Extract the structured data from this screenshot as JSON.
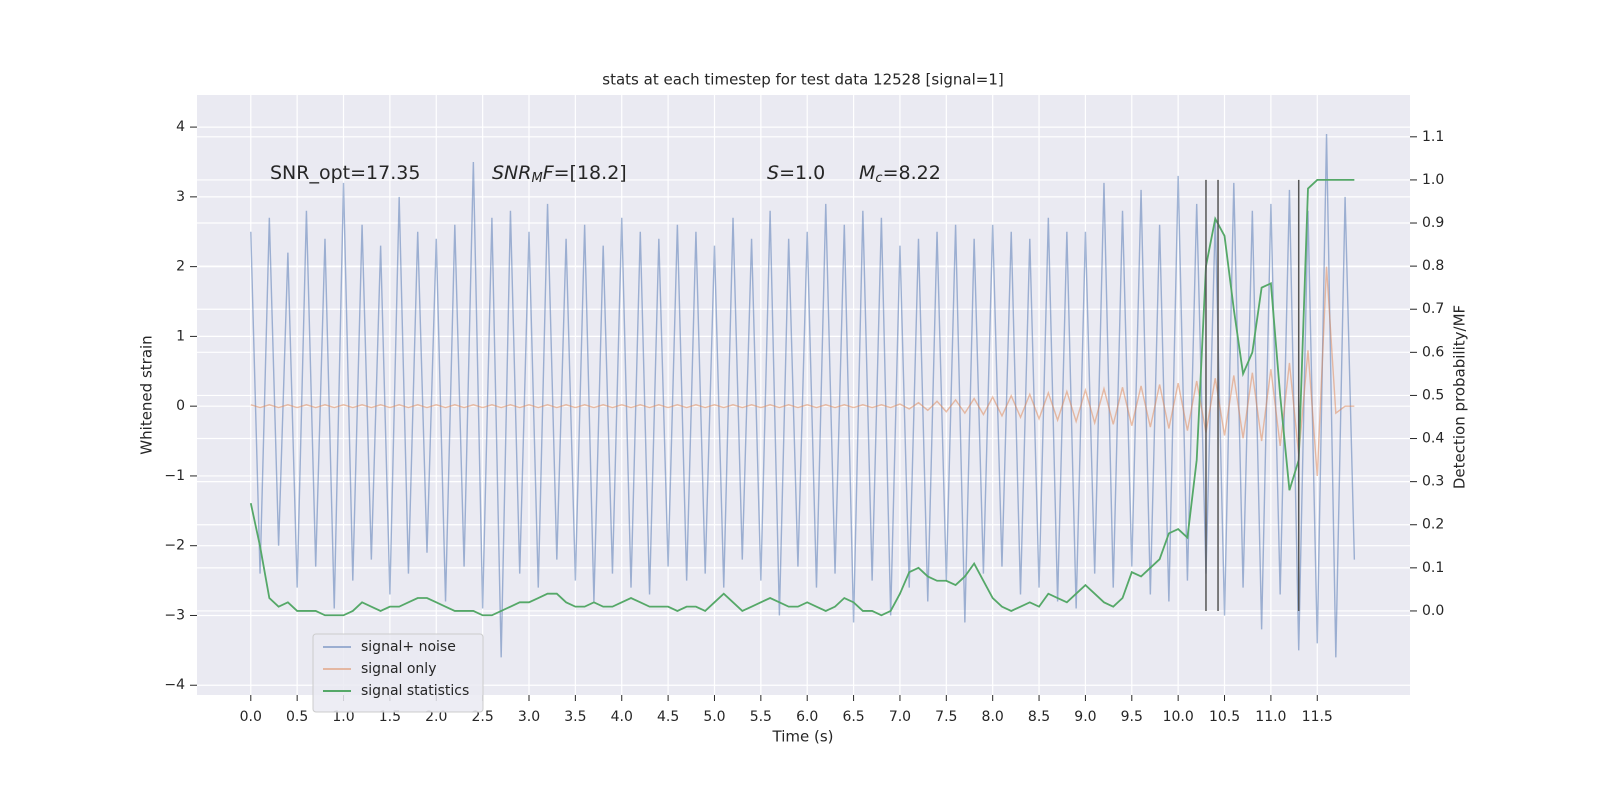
{
  "chart_data": {
    "type": "line",
    "title": "stats at each timestep for test data 12528 [signal=1]",
    "xlabel": "Time (s)",
    "ylabel": "Whitened strain",
    "y2label": "Detection probability/MF",
    "grid": true,
    "legend": "lower left",
    "xlim": [
      -0.58,
      12.5
    ],
    "ylim": [
      -4.14,
      4.46
    ],
    "y2lim": [
      -0.195,
      1.197
    ],
    "xticks": [
      {
        "value": 0,
        "label": "0.0"
      },
      {
        "value": 0.5,
        "label": "0.5"
      },
      {
        "value": 1,
        "label": "1.0"
      },
      {
        "value": 1.5,
        "label": "1.5"
      },
      {
        "value": 2,
        "label": "2.0"
      },
      {
        "value": 2.5,
        "label": "2.5"
      },
      {
        "value": 3,
        "label": "3.0"
      },
      {
        "value": 3.5,
        "label": "3.5"
      },
      {
        "value": 4,
        "label": "4.0"
      },
      {
        "value": 4.5,
        "label": "4.5"
      },
      {
        "value": 5,
        "label": "5.0"
      },
      {
        "value": 5.5,
        "label": "5.5"
      },
      {
        "value": 6,
        "label": "6.0"
      },
      {
        "value": 6.5,
        "label": "6.5"
      },
      {
        "value": 7,
        "label": "7.0"
      },
      {
        "value": 7.5,
        "label": "7.5"
      },
      {
        "value": 8,
        "label": "8.0"
      },
      {
        "value": 8.5,
        "label": "8.5"
      },
      {
        "value": 9,
        "label": "9.0"
      },
      {
        "value": 9.5,
        "label": "9.5"
      },
      {
        "value": 10,
        "label": "10.0"
      },
      {
        "value": 10.5,
        "label": "10.5"
      },
      {
        "value": 11,
        "label": "11.0"
      },
      {
        "value": 11.5,
        "label": "11.5"
      }
    ],
    "yticks": [
      {
        "value": -4,
        "label": "−4"
      },
      {
        "value": -3,
        "label": "−3"
      },
      {
        "value": -2,
        "label": "−2"
      },
      {
        "value": -1,
        "label": "−1"
      },
      0,
      1,
      2,
      3,
      4
    ],
    "y2ticks": [
      {
        "value": 0,
        "label": "0.0"
      },
      {
        "value": 0.1,
        "label": "0.1"
      },
      {
        "value": 0.2,
        "label": "0.2"
      },
      {
        "value": 0.3,
        "label": "0.3"
      },
      {
        "value": 0.4,
        "label": "0.4"
      },
      {
        "value": 0.5,
        "label": "0.5"
      },
      {
        "value": 0.6,
        "label": "0.6"
      },
      {
        "value": 0.7,
        "label": "0.7"
      },
      {
        "value": 0.8,
        "label": "0.8"
      },
      {
        "value": 0.9,
        "label": "0.9"
      },
      {
        "value": 1,
        "label": "1.0"
      },
      {
        "value": 1.1,
        "label": "1.1"
      }
    ],
    "annotations": [
      [
        {
          "text": "SNR_opt=17.35"
        }
      ],
      [
        {
          "text": "SNR",
          "italic": true
        },
        {
          "text": "M",
          "italic": true,
          "sub": true
        },
        {
          "text": "F",
          "italic": true
        },
        {
          "text": "=[18.2]"
        }
      ],
      [
        {
          "text": "S",
          "italic": true
        },
        {
          "text": "=1.0"
        }
      ],
      [
        {
          "text": "M",
          "italic": true
        },
        {
          "text": "c",
          "italic": true,
          "sub": true
        },
        {
          "text": "=8.22"
        }
      ]
    ],
    "vlines": {
      "x": [
        10.3,
        10.43,
        11.3
      ],
      "y2": [
        0.0,
        1.0
      ],
      "color": "#555555"
    },
    "x": [
      0,
      0.1,
      0.2,
      0.3,
      0.4,
      0.5,
      0.6,
      0.7,
      0.8,
      0.9,
      1,
      1.1,
      1.2,
      1.3,
      1.4,
      1.5,
      1.6,
      1.7,
      1.8,
      1.9,
      2,
      2.1,
      2.2,
      2.3,
      2.4,
      2.5,
      2.6,
      2.7,
      2.8,
      2.9,
      3,
      3.1,
      3.2,
      3.3,
      3.4,
      3.5,
      3.6,
      3.7,
      3.8,
      3.9,
      4,
      4.1,
      4.2,
      4.3,
      4.4,
      4.5,
      4.6,
      4.7,
      4.8,
      4.9,
      5,
      5.1,
      5.2,
      5.3,
      5.4,
      5.5,
      5.6,
      5.7,
      5.8,
      5.9,
      6,
      6.1,
      6.2,
      6.3,
      6.4,
      6.5,
      6.6,
      6.7,
      6.8,
      6.9,
      7,
      7.1,
      7.2,
      7.3,
      7.4,
      7.5,
      7.6,
      7.7,
      7.8,
      7.9,
      8,
      8.1,
      8.2,
      8.3,
      8.4,
      8.5,
      8.6,
      8.7,
      8.8,
      8.9,
      9,
      9.1,
      9.2,
      9.3,
      9.4,
      9.5,
      9.6,
      9.7,
      9.8,
      9.9,
      10,
      10.1,
      10.2,
      10.3,
      10.4,
      10.5,
      10.6,
      10.7,
      10.8,
      10.9,
      11,
      11.1,
      11.2,
      11.3,
      11.4,
      11.5,
      11.6,
      11.7,
      11.8,
      11.9
    ],
    "series": [
      {
        "name": "signal+ noise",
        "color": "#4c72b0",
        "opacity": 0.5,
        "values": [
          2.5,
          -2.4,
          2.7,
          -2.0,
          2.2,
          -2.6,
          2.8,
          -2.3,
          2.4,
          -2.9,
          3.2,
          -2.5,
          2.6,
          -2.2,
          2.3,
          -2.7,
          3.0,
          -2.4,
          2.5,
          -2.1,
          2.4,
          -2.8,
          2.6,
          -2.3,
          3.5,
          -2.9,
          2.7,
          -3.6,
          2.8,
          -2.4,
          2.5,
          -2.6,
          2.9,
          -2.2,
          2.4,
          -2.5,
          2.6,
          -2.8,
          2.3,
          -2.4,
          2.7,
          -2.6,
          2.5,
          -2.7,
          2.4,
          -2.3,
          2.6,
          -2.5,
          2.5,
          -2.4,
          2.3,
          -2.6,
          2.7,
          -2.2,
          2.4,
          -2.5,
          2.8,
          -3.0,
          2.4,
          -2.3,
          2.5,
          -2.6,
          2.9,
          -2.4,
          2.6,
          -3.1,
          2.8,
          -2.5,
          2.7,
          -3.0,
          2.3,
          -2.6,
          2.4,
          -2.8,
          2.5,
          -2.5,
          2.6,
          -3.1,
          2.4,
          -2.4,
          2.6,
          -2.3,
          2.5,
          -2.7,
          2.4,
          -2.6,
          2.7,
          -2.8,
          2.5,
          -2.9,
          2.5,
          -2.4,
          3.2,
          -2.6,
          2.8,
          -2.3,
          3.1,
          -2.7,
          2.6,
          -2.8,
          3.3,
          -2.5,
          2.9,
          -2.4,
          2.7,
          -3.0,
          3.2,
          -2.6,
          2.8,
          -3.2,
          2.9,
          -2.7,
          3.1,
          -3.5,
          2.8,
          -3.4,
          3.9,
          -3.6,
          3.0,
          -2.2
        ]
      },
      {
        "name": "signal only",
        "color": "#dd8452",
        "opacity": 0.5,
        "values": [
          0.02,
          -0.02,
          0.02,
          -0.02,
          0.02,
          -0.02,
          0.02,
          -0.02,
          0.02,
          -0.02,
          0.02,
          -0.02,
          0.02,
          -0.02,
          0.02,
          -0.02,
          0.02,
          -0.02,
          0.02,
          -0.02,
          0.02,
          -0.02,
          0.02,
          -0.02,
          0.02,
          -0.02,
          0.02,
          -0.02,
          0.02,
          -0.02,
          0.02,
          -0.02,
          0.02,
          -0.02,
          0.02,
          -0.02,
          0.02,
          -0.02,
          0.02,
          -0.02,
          0.02,
          -0.02,
          0.02,
          -0.02,
          0.02,
          -0.02,
          0.02,
          -0.02,
          0.02,
          -0.02,
          0.02,
          -0.02,
          0.02,
          -0.02,
          0.02,
          -0.02,
          0.02,
          -0.02,
          0.02,
          -0.02,
          0.02,
          -0.02,
          0.02,
          -0.02,
          0.02,
          -0.02,
          0.02,
          -0.02,
          0.02,
          -0.02,
          0.03,
          -0.04,
          0.05,
          -0.06,
          0.07,
          -0.08,
          0.09,
          -0.1,
          0.11,
          -0.12,
          0.13,
          -0.14,
          0.15,
          -0.16,
          0.17,
          -0.18,
          0.19,
          -0.2,
          0.21,
          -0.22,
          0.23,
          -0.24,
          0.25,
          -0.26,
          0.27,
          -0.28,
          0.29,
          -0.3,
          0.31,
          -0.32,
          0.33,
          -0.35,
          0.36,
          -0.38,
          0.4,
          -0.42,
          0.44,
          -0.46,
          0.48,
          -0.5,
          0.53,
          -0.57,
          0.62,
          -0.7,
          0.8,
          -1.0,
          2.0,
          -0.1,
          0.0,
          0.0
        ]
      },
      {
        "name": "signal statistics",
        "color": "#55a868",
        "opacity": 1,
        "axis": "y2",
        "values": [
          0.25,
          0.15,
          0.03,
          0.01,
          0.02,
          0.0,
          0.0,
          0.0,
          -0.01,
          -0.01,
          -0.01,
          0.0,
          0.02,
          0.01,
          0.0,
          0.01,
          0.01,
          0.02,
          0.03,
          0.03,
          0.02,
          0.01,
          0.0,
          0.0,
          0.0,
          -0.01,
          -0.01,
          0.0,
          0.01,
          0.02,
          0.02,
          0.03,
          0.04,
          0.04,
          0.02,
          0.01,
          0.01,
          0.02,
          0.01,
          0.01,
          0.02,
          0.03,
          0.02,
          0.01,
          0.01,
          0.01,
          0.0,
          0.01,
          0.01,
          0.0,
          0.02,
          0.04,
          0.02,
          0.0,
          0.01,
          0.02,
          0.03,
          0.02,
          0.01,
          0.01,
          0.02,
          0.01,
          0.0,
          0.01,
          0.03,
          0.02,
          0.0,
          0.0,
          -0.01,
          0.0,
          0.04,
          0.09,
          0.1,
          0.08,
          0.07,
          0.07,
          0.06,
          0.08,
          0.11,
          0.07,
          0.03,
          0.01,
          0.0,
          0.01,
          0.02,
          0.01,
          0.04,
          0.03,
          0.02,
          0.04,
          0.06,
          0.04,
          0.02,
          0.01,
          0.03,
          0.09,
          0.08,
          0.1,
          0.12,
          0.18,
          0.19,
          0.17,
          0.35,
          0.8,
          0.91,
          0.87,
          0.7,
          0.55,
          0.6,
          0.75,
          0.76,
          0.5,
          0.28,
          0.35,
          0.98,
          1.0,
          1.0,
          1.0,
          1.0,
          1.0
        ]
      }
    ]
  }
}
